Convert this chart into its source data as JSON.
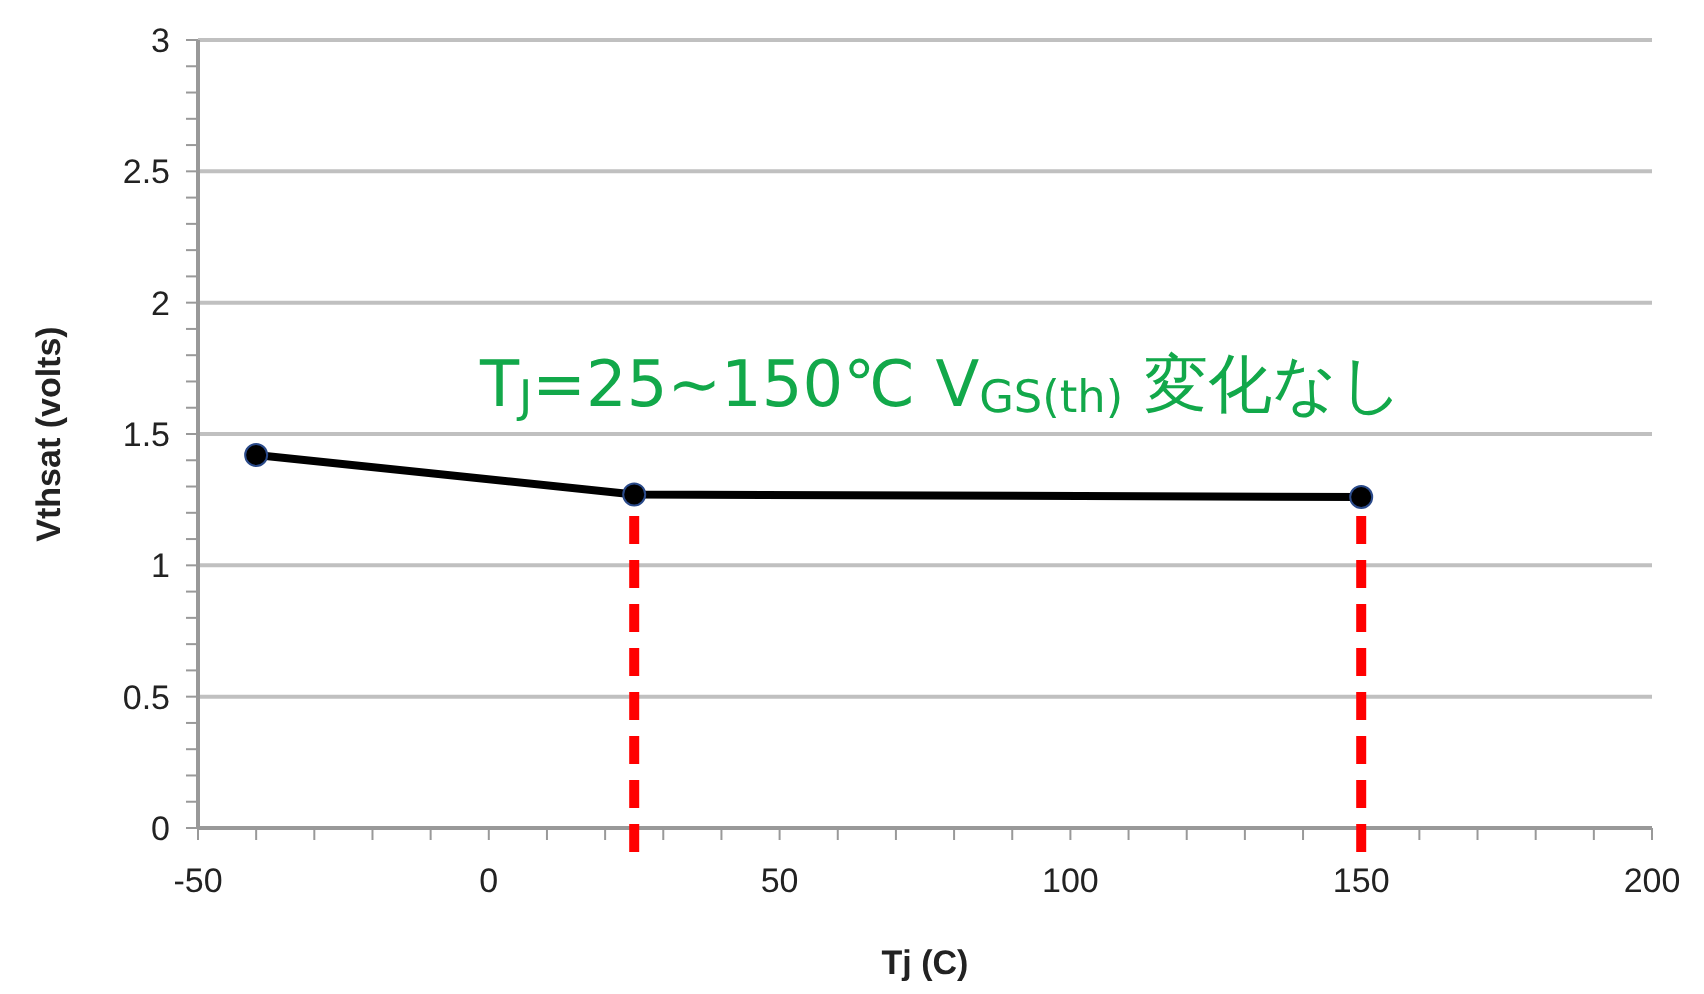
{
  "chart_data": {
    "type": "line",
    "xlabel": "Tj (C)",
    "ylabel": "Vthsat (volts)",
    "x": [
      -40,
      25,
      150
    ],
    "series": [
      {
        "color": "#000000",
        "values": [
          1.42,
          1.27,
          1.26
        ]
      }
    ],
    "xlim": [
      -50,
      200
    ],
    "xticks": [
      -50,
      0,
      50,
      100,
      150,
      200
    ],
    "ylim": [
      0,
      3
    ],
    "yticks": [
      0,
      0.5,
      1,
      1.5,
      2,
      2.5,
      3
    ],
    "grid": "y",
    "marker": "circle",
    "line_style": "solid",
    "ref_lines": [
      {
        "axis": "x",
        "value": 25,
        "color": "#ff0000",
        "line_style": "dashed"
      },
      {
        "axis": "x",
        "value": 150,
        "color": "#ff0000",
        "line_style": "dashed"
      }
    ],
    "annotations": [
      "T$_{J}$=25~150℃  V$_{GS(th)}$ 変化なし"
    ]
  }
}
